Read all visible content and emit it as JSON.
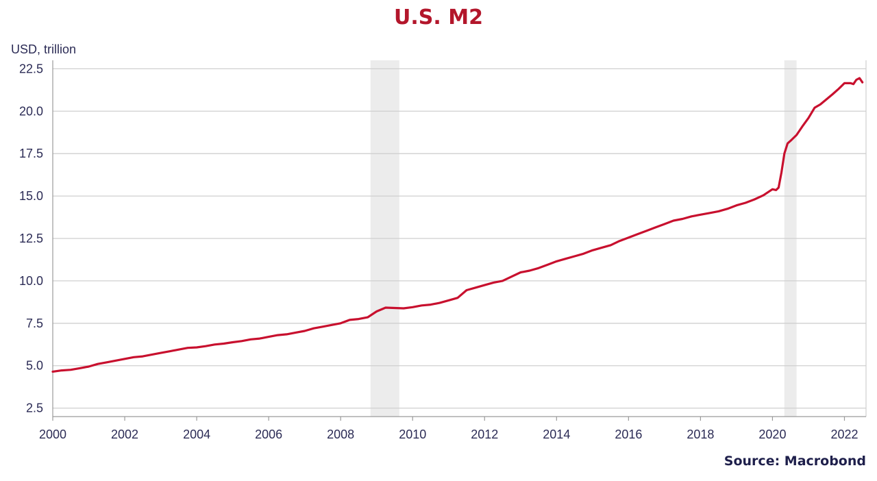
{
  "chart_data": {
    "type": "line",
    "title": "U.S. M2",
    "ylabel": "USD, trillion",
    "xlabel": "",
    "source": "Source: Macrobond",
    "xlim": [
      2000,
      2022.6
    ],
    "ylim": [
      2.0,
      23.0
    ],
    "x_ticks": [
      "2000",
      "2002",
      "2004",
      "2006",
      "2008",
      "2010",
      "2012",
      "2014",
      "2016",
      "2018",
      "2020",
      "2022"
    ],
    "y_ticks": [
      "2.5",
      "5.0",
      "7.5",
      "10.0",
      "12.5",
      "15.0",
      "17.5",
      "20.0",
      "22.5"
    ],
    "grid": true,
    "recession_shading": [
      {
        "start": 2008.83,
        "end": 2009.63
      },
      {
        "start": 2020.33,
        "end": 2020.67
      }
    ],
    "colors": {
      "line": "#c8102e",
      "title": "#b3162b",
      "shade": "#ececec",
      "grid": "#cfcfcf",
      "text": "#2b2b55"
    },
    "series": [
      {
        "x": [
          2000.0,
          2000.25,
          2000.5,
          2000.75,
          2001.0,
          2001.25,
          2001.5,
          2001.75,
          2002.0,
          2002.25,
          2002.5,
          2002.75,
          2003.0,
          2003.25,
          2003.5,
          2003.75,
          2004.0,
          2004.25,
          2004.5,
          2004.75,
          2005.0,
          2005.25,
          2005.5,
          2005.75,
          2006.0,
          2006.25,
          2006.5,
          2006.75,
          2007.0,
          2007.25,
          2007.5,
          2007.75,
          2008.0,
          2008.25,
          2008.5,
          2008.75,
          2009.0,
          2009.25,
          2009.5,
          2009.75,
          2010.0,
          2010.25,
          2010.5,
          2010.75,
          2011.0,
          2011.25,
          2011.5,
          2011.75,
          2012.0,
          2012.25,
          2012.5,
          2012.75,
          2013.0,
          2013.25,
          2013.5,
          2013.75,
          2014.0,
          2014.25,
          2014.5,
          2014.75,
          2015.0,
          2015.25,
          2015.5,
          2015.75,
          2016.0,
          2016.25,
          2016.5,
          2016.75,
          2017.0,
          2017.25,
          2017.5,
          2017.75,
          2018.0,
          2018.25,
          2018.5,
          2018.75,
          2019.0,
          2019.25,
          2019.5,
          2019.75,
          2020.0,
          2020.1,
          2020.17,
          2020.25,
          2020.33,
          2020.42,
          2020.5,
          2020.67,
          2020.83,
          2021.0,
          2021.17,
          2021.33,
          2021.5,
          2021.67,
          2021.83,
          2022.0,
          2022.17,
          2022.25,
          2022.33,
          2022.42,
          2022.5
        ],
        "values": [
          4.65,
          4.72,
          4.76,
          4.85,
          4.95,
          5.1,
          5.2,
          5.3,
          5.4,
          5.5,
          5.55,
          5.65,
          5.75,
          5.85,
          5.95,
          6.05,
          6.08,
          6.15,
          6.25,
          6.3,
          6.38,
          6.45,
          6.55,
          6.6,
          6.7,
          6.8,
          6.85,
          6.95,
          7.05,
          7.2,
          7.3,
          7.4,
          7.5,
          7.7,
          7.75,
          7.85,
          8.2,
          8.42,
          8.4,
          8.38,
          8.45,
          8.55,
          8.6,
          8.7,
          8.85,
          9.0,
          9.45,
          9.6,
          9.75,
          9.9,
          10.0,
          10.25,
          10.5,
          10.6,
          10.75,
          10.95,
          11.15,
          11.3,
          11.45,
          11.6,
          11.8,
          11.95,
          12.1,
          12.35,
          12.55,
          12.75,
          12.95,
          13.15,
          13.35,
          13.55,
          13.65,
          13.8,
          13.9,
          14.0,
          14.1,
          14.25,
          14.45,
          14.6,
          14.8,
          15.05,
          15.4,
          15.35,
          15.5,
          16.4,
          17.5,
          18.1,
          18.25,
          18.6,
          19.1,
          19.6,
          20.2,
          20.4,
          20.7,
          21.0,
          21.3,
          21.65,
          21.65,
          21.6,
          21.85,
          21.95,
          21.7
        ]
      }
    ]
  }
}
